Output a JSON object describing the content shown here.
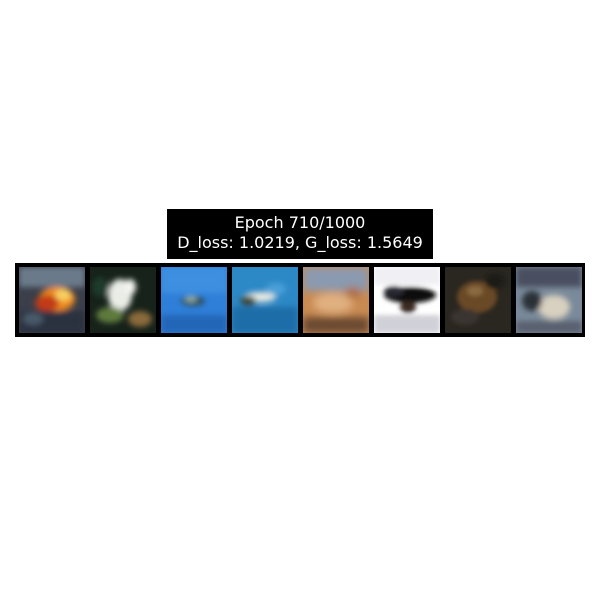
{
  "title": {
    "line1": "Epoch 710/1000",
    "line2": "D_loss: 1.0219, G_loss: 1.5649"
  },
  "samples": [
    {
      "index": 0,
      "palette": [
        "#3b3f4a",
        "#f08a1c",
        "#c23a12",
        "#2a3340"
      ]
    },
    {
      "index": 1,
      "palette": [
        "#16221a",
        "#e9ede6",
        "#5f7a3c",
        "#8a6a3a"
      ]
    },
    {
      "index": 2,
      "palette": [
        "#2f7fd8",
        "#3d8fe0",
        "#2c4b5a",
        "#9ab0a0"
      ]
    },
    {
      "index": 3,
      "palette": [
        "#2d88c6",
        "#1a6da8",
        "#e8e8e0",
        "#3a4a3a"
      ]
    },
    {
      "index": 4,
      "palette": [
        "#c98a52",
        "#8a9ab0",
        "#e0b080",
        "#6a4a30"
      ]
    },
    {
      "index": 5,
      "palette": [
        "#ffffff",
        "#0a0a0a",
        "#2a2a35",
        "#d0d0d8"
      ]
    },
    {
      "index": 6,
      "palette": [
        "#2a2620",
        "#6a4a28",
        "#3a3430",
        "#1e1a18"
      ]
    },
    {
      "index": 7,
      "palette": [
        "#7a8a9a",
        "#4a5060",
        "#d8d0c0",
        "#2a3038"
      ]
    }
  ]
}
